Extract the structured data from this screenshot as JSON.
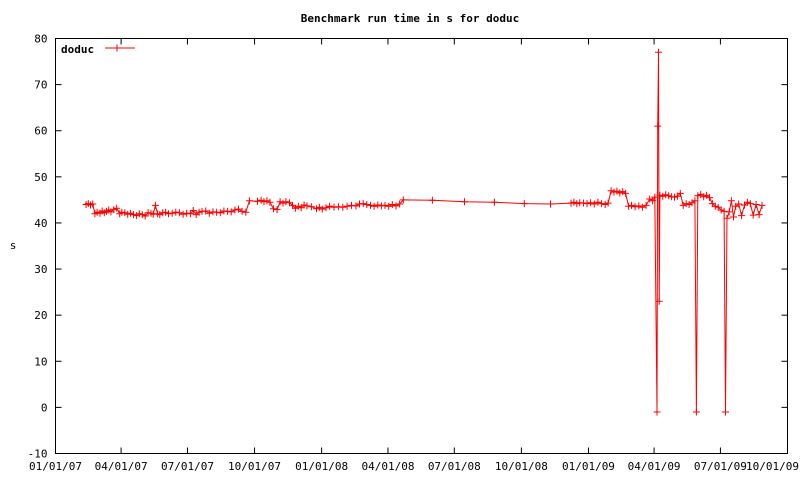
{
  "chart_data": {
    "type": "line",
    "title": "Benchmark run time in s for doduc",
    "xlabel": "",
    "ylabel": "s",
    "x_ticks": [
      "01/01/07",
      "04/01/07",
      "07/01/07",
      "10/01/07",
      "01/01/08",
      "04/01/08",
      "07/01/08",
      "10/01/08",
      "01/01/09",
      "04/01/09",
      "07/01/09",
      "10/01/09"
    ],
    "y_ticks": [
      "-10",
      "0",
      "10",
      "20",
      "30",
      "40",
      "50",
      "60",
      "70",
      "80"
    ],
    "xlim": [
      "01/01/07",
      "10/01/09"
    ],
    "ylim": [
      -10,
      80
    ],
    "grid": false,
    "legend": "top-left",
    "series_color": "#ff0000",
    "series": [
      {
        "name": "doduc",
        "points": [
          [
            "02/12/07",
            44.0
          ],
          [
            "02/15/07",
            44.2
          ],
          [
            "02/18/07",
            43.9
          ],
          [
            "02/21/07",
            44.1
          ],
          [
            "02/24/07",
            42.0
          ],
          [
            "02/27/07",
            42.3
          ],
          [
            "03/03/07",
            42.1
          ],
          [
            "03/06/07",
            42.6
          ],
          [
            "03/09/07",
            42.2
          ],
          [
            "03/12/07",
            42.5
          ],
          [
            "03/15/07",
            42.8
          ],
          [
            "03/18/07",
            42.4
          ],
          [
            "03/22/07",
            42.9
          ],
          [
            "03/26/07",
            43.2
          ],
          [
            "03/30/07",
            42.0
          ],
          [
            "04/02/07",
            42.3
          ],
          [
            "04/06/07",
            42.2
          ],
          [
            "04/10/07",
            41.9
          ],
          [
            "04/14/07",
            42.1
          ],
          [
            "04/18/07",
            41.8
          ],
          [
            "04/22/07",
            41.6
          ],
          [
            "04/26/07",
            42.0
          ],
          [
            "04/30/07",
            41.8
          ],
          [
            "05/04/07",
            41.5
          ],
          [
            "05/08/07",
            42.2
          ],
          [
            "05/12/07",
            42.1
          ],
          [
            "05/15/07",
            41.9
          ],
          [
            "05/18/07",
            43.8
          ],
          [
            "05/21/07",
            42.0
          ],
          [
            "05/24/07",
            41.8
          ],
          [
            "05/28/07",
            42.2
          ],
          [
            "06/01/07",
            42.3
          ],
          [
            "06/05/07",
            42.0
          ],
          [
            "06/10/07",
            42.1
          ],
          [
            "06/15/07",
            42.3
          ],
          [
            "06/20/07",
            42.2
          ],
          [
            "06/25/07",
            41.9
          ],
          [
            "06/30/07",
            42.1
          ],
          [
            "07/05/07",
            42.0
          ],
          [
            "07/09/07",
            42.7
          ],
          [
            "07/13/07",
            41.8
          ],
          [
            "07/17/07",
            42.3
          ],
          [
            "07/21/07",
            42.5
          ],
          [
            "07/26/07",
            42.6
          ],
          [
            "07/31/07",
            42.1
          ],
          [
            "08/05/07",
            42.4
          ],
          [
            "08/10/07",
            42.3
          ],
          [
            "08/15/07",
            42.2
          ],
          [
            "08/20/07",
            42.6
          ],
          [
            "08/25/07",
            42.5
          ],
          [
            "08/30/07",
            42.4
          ],
          [
            "09/04/07",
            42.8
          ],
          [
            "09/09/07",
            43.0
          ],
          [
            "09/14/07",
            42.5
          ],
          [
            "09/19/07",
            42.3
          ],
          [
            "09/24/07",
            44.8
          ],
          [
            "10/05/07",
            44.7
          ],
          [
            "10/10/07",
            44.9
          ],
          [
            "10/14/07",
            44.6
          ],
          [
            "10/18/07",
            44.8
          ],
          [
            "10/22/07",
            44.5
          ],
          [
            "10/27/07",
            43.1
          ],
          [
            "11/01/07",
            42.9
          ],
          [
            "11/05/07",
            44.6
          ],
          [
            "11/09/07",
            44.3
          ],
          [
            "11/13/07",
            44.6
          ],
          [
            "11/18/07",
            44.4
          ],
          [
            "11/22/07",
            43.8
          ],
          [
            "11/26/07",
            43.2
          ],
          [
            "11/30/07",
            43.6
          ],
          [
            "12/04/07",
            43.3
          ],
          [
            "12/08/07",
            43.9
          ],
          [
            "12/12/07",
            43.7
          ],
          [
            "12/18/07",
            43.5
          ],
          [
            "12/25/07",
            43.1
          ],
          [
            "12/29/07",
            43.4
          ],
          [
            "01/02/08",
            43.0
          ],
          [
            "01/07/08",
            43.3
          ],
          [
            "01/12/08",
            43.6
          ],
          [
            "01/18/08",
            43.4
          ],
          [
            "01/24/08",
            43.5
          ],
          [
            "01/30/08",
            43.4
          ],
          [
            "02/05/08",
            43.6
          ],
          [
            "02/11/08",
            43.8
          ],
          [
            "02/17/08",
            43.7
          ],
          [
            "02/22/08",
            44.1
          ],
          [
            "02/27/08",
            44.2
          ],
          [
            "03/03/08",
            44.0
          ],
          [
            "03/08/08",
            43.8
          ],
          [
            "03/13/08",
            43.6
          ],
          [
            "03/18/08",
            43.9
          ],
          [
            "03/23/08",
            43.7
          ],
          [
            "03/28/08",
            43.8
          ],
          [
            "04/02/08",
            43.6
          ],
          [
            "04/07/08",
            44.0
          ],
          [
            "04/12/08",
            43.7
          ],
          [
            "04/17/08",
            44.1
          ],
          [
            "04/22/08",
            45.0
          ],
          [
            "06/01/08",
            44.9
          ],
          [
            "07/15/08",
            44.6
          ],
          [
            "08/25/08",
            44.5
          ],
          [
            "10/05/08",
            44.2
          ],
          [
            "11/10/08",
            44.1
          ],
          [
            "12/08/08",
            44.3
          ],
          [
            "12/12/08",
            44.5
          ],
          [
            "12/16/08",
            44.2
          ],
          [
            "12/20/08",
            44.4
          ],
          [
            "12/25/08",
            44.3
          ],
          [
            "12/30/08",
            44.2
          ],
          [
            "01/04/09",
            44.4
          ],
          [
            "01/09/09",
            44.1
          ],
          [
            "01/14/09",
            44.5
          ],
          [
            "01/19/09",
            44.2
          ],
          [
            "01/24/09",
            44.0
          ],
          [
            "01/28/09",
            44.3
          ],
          [
            "02/01/09",
            47.0
          ],
          [
            "02/05/09",
            46.7
          ],
          [
            "02/09/09",
            46.9
          ],
          [
            "02/13/09",
            46.5
          ],
          [
            "02/17/09",
            46.8
          ],
          [
            "02/21/09",
            46.4
          ],
          [
            "02/25/09",
            43.6
          ],
          [
            "03/01/09",
            43.8
          ],
          [
            "03/06/09",
            43.5
          ],
          [
            "03/11/09",
            43.7
          ],
          [
            "03/16/09",
            43.4
          ],
          [
            "03/21/09",
            43.8
          ],
          [
            "03/26/09",
            45.2
          ],
          [
            "03/30/09",
            44.8
          ],
          [
            "04/02/09",
            45.6
          ],
          [
            "04/05/09",
            -1.0
          ],
          [
            "04/06/09",
            61.0
          ],
          [
            "04/07/09",
            77.0
          ],
          [
            "04/08/09",
            23.0
          ],
          [
            "04/09/09",
            46.0
          ],
          [
            "04/13/09",
            45.8
          ],
          [
            "04/17/09",
            46.1
          ],
          [
            "04/21/09",
            45.9
          ],
          [
            "04/25/09",
            45.7
          ],
          [
            "04/29/09",
            45.6
          ],
          [
            "05/03/09",
            45.8
          ],
          [
            "05/07/09",
            46.4
          ],
          [
            "05/11/09",
            43.8
          ],
          [
            "05/15/09",
            44.2
          ],
          [
            "05/19/09",
            44.0
          ],
          [
            "05/23/09",
            44.4
          ],
          [
            "05/27/09",
            44.8
          ],
          [
            "05/29/09",
            -1.0
          ],
          [
            "05/31/09",
            45.9
          ],
          [
            "06/04/09",
            46.2
          ],
          [
            "06/08/09",
            45.7
          ],
          [
            "06/12/09",
            46.0
          ],
          [
            "06/16/09",
            45.5
          ],
          [
            "06/20/09",
            44.2
          ],
          [
            "06/24/09",
            43.6
          ],
          [
            "06/28/09",
            43.4
          ],
          [
            "07/02/09",
            42.8
          ],
          [
            "07/06/09",
            42.5
          ],
          [
            "07/08/09",
            -1.0
          ],
          [
            "07/10/09",
            41.0
          ],
          [
            "07/13/09",
            42.4
          ],
          [
            "07/16/09",
            44.8
          ],
          [
            "07/19/09",
            41.3
          ],
          [
            "07/22/09",
            43.6
          ],
          [
            "07/26/09",
            44.1
          ],
          [
            "07/30/09",
            41.6
          ],
          [
            "08/03/09",
            43.9
          ],
          [
            "08/07/09",
            44.5
          ],
          [
            "08/11/09",
            44.2
          ],
          [
            "08/15/09",
            41.7
          ],
          [
            "08/19/09",
            44.0
          ],
          [
            "08/23/09",
            41.8
          ],
          [
            "08/27/09",
            43.8
          ]
        ]
      }
    ]
  }
}
